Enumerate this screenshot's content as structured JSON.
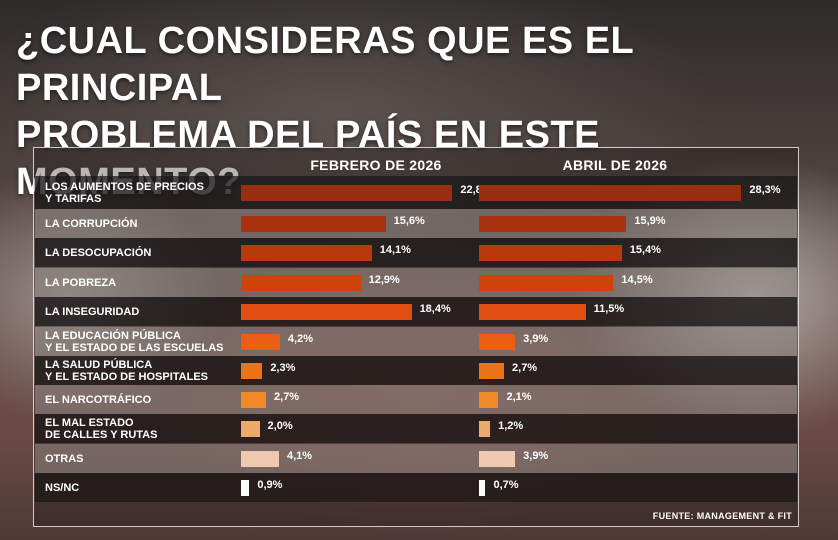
{
  "title": "¿CUAL CONSIDERAS QUE ES EL PRINCIPAL\nPROBLEMA DEL PAÍS EN ESTE MOMENTO?",
  "source": "FUENTE: MANAGEMENT & FIT",
  "chart_data": {
    "type": "bar",
    "orientation": "horizontal",
    "categories": [
      "LOS AUMENTOS DE PRECIOS\nY TARIFAS",
      "LA CORRUPCIÓN",
      "LA DESOCUPACIÓN",
      "LA POBREZA",
      "LA INSEGURIDAD",
      "LA EDUCACIÓN PÚBLICA\nY EL ESTADO DE LAS ESCUELAS",
      "LA SALUD PÚBLICA\nY EL ESTADO DE HOSPITALES",
      "EL NARCOTRÁFICO",
      "EL MAL ESTADO\nDE CALLES Y RUTAS",
      "OTRAS",
      "NS/NC"
    ],
    "series": [
      {
        "name": "FEBRERO DE 2026",
        "values": [
          22.8,
          15.6,
          14.1,
          12.9,
          18.4,
          4.2,
          2.3,
          2.7,
          2.0,
          4.1,
          0.9
        ],
        "labels": [
          "22,8%",
          "15,6%",
          "14,1%",
          "12,9%",
          "18,4%",
          "4,2%",
          "2,3%",
          "2,7%",
          "2,0%",
          "4,1%",
          "0,9%"
        ]
      },
      {
        "name": "ABRIL DE 2026",
        "values": [
          28.3,
          15.9,
          15.4,
          14.5,
          11.5,
          3.9,
          2.7,
          2.1,
          1.2,
          3.9,
          0.7
        ],
        "labels": [
          "28,3%",
          "15,9%",
          "15,4%",
          "14,5%",
          "11,5%",
          "3,9%",
          "2,7%",
          "2,1%",
          "1,2%",
          "3,9%",
          "0,7%"
        ]
      }
    ],
    "bar_colors": [
      "#9a2e10",
      "#a8320e",
      "#b8390c",
      "#cf420a",
      "#e04f10",
      "#ea5e16",
      "#ec7318",
      "#ee8a28",
      "#eeaa6a",
      "#efcab0",
      "#ffffff"
    ],
    "value_format": "percent with comma decimal",
    "grid": false,
    "legend": "column headers above bars"
  }
}
